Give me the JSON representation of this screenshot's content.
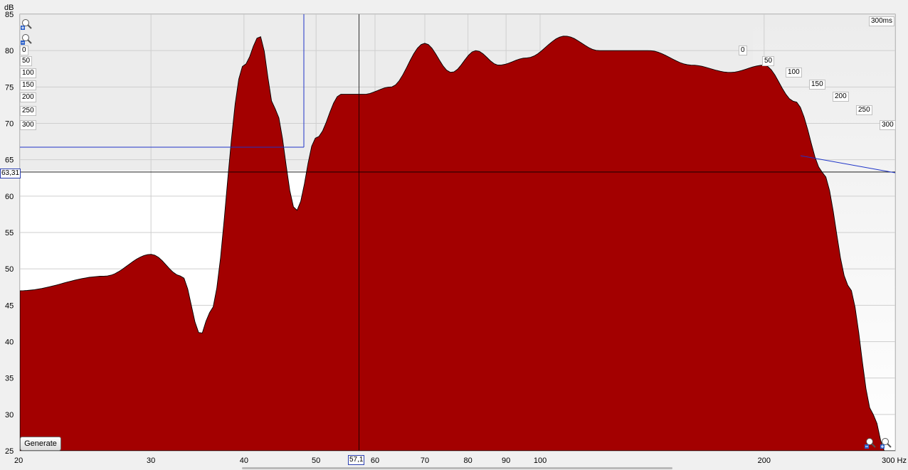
{
  "chart_data": {
    "type": "area",
    "title": "",
    "x_unit_label": "Hz",
    "y_unit_label": "dB",
    "x_scale": "log",
    "xlim": [
      20,
      300
    ],
    "ylim": [
      25,
      85
    ],
    "x_ticks": [
      "20",
      "30",
      "40",
      "50",
      "60",
      "70",
      "80",
      "90",
      "100",
      "200",
      "300 Hz"
    ],
    "x_tick_values": [
      20,
      30,
      40,
      50,
      60,
      70,
      80,
      90,
      100,
      200,
      300
    ],
    "y_ticks": [
      "25",
      "30",
      "35",
      "40",
      "45",
      "50",
      "55",
      "60",
      "65",
      "70",
      "75",
      "80",
      "85"
    ],
    "y_tick_values": [
      25,
      30,
      35,
      40,
      45,
      50,
      55,
      60,
      65,
      70,
      75,
      80,
      85
    ],
    "time_labels_left": [
      "0",
      "50",
      "100",
      "150",
      "200",
      "250",
      "300"
    ],
    "time_labels_depth": [
      "0",
      "50",
      "100",
      "150",
      "200",
      "250",
      "300"
    ],
    "time_end_label": "300ms",
    "time_ms": [
      0,
      300
    ],
    "num_slices": 30,
    "front_slice_peaks_db": [
      [
        20,
        47
      ],
      [
        26,
        49
      ],
      [
        30,
        52
      ],
      [
        33,
        49
      ],
      [
        35,
        41
      ],
      [
        36,
        44
      ],
      [
        40,
        78
      ],
      [
        42,
        82
      ],
      [
        44,
        72
      ],
      [
        47,
        58
      ],
      [
        50,
        68
      ],
      [
        54,
        74
      ],
      [
        58,
        74
      ],
      [
        63,
        75
      ],
      [
        70,
        81
      ],
      [
        76,
        77
      ],
      [
        82,
        80
      ],
      [
        88,
        78
      ],
      [
        96,
        79
      ],
      [
        108,
        82
      ],
      [
        120,
        80
      ],
      [
        140,
        80
      ],
      [
        160,
        78
      ],
      [
        180,
        77
      ],
      [
        200,
        78
      ],
      [
        220,
        73
      ],
      [
        240,
        64
      ],
      [
        260,
        50
      ],
      [
        280,
        34
      ],
      [
        295,
        27
      ]
    ],
    "rear_slice_peaks_db": [
      [
        40,
        74
      ],
      [
        44,
        62
      ],
      [
        80,
        62
      ]
    ],
    "cursor": {
      "x_hz": "57,1",
      "y_db": "63,31"
    },
    "cursor_frequency_hz": 57.1,
    "cursor_level_db": 63.31,
    "color": "#a30000",
    "grid": true
  },
  "controls": {
    "generate_label": "Generate"
  }
}
